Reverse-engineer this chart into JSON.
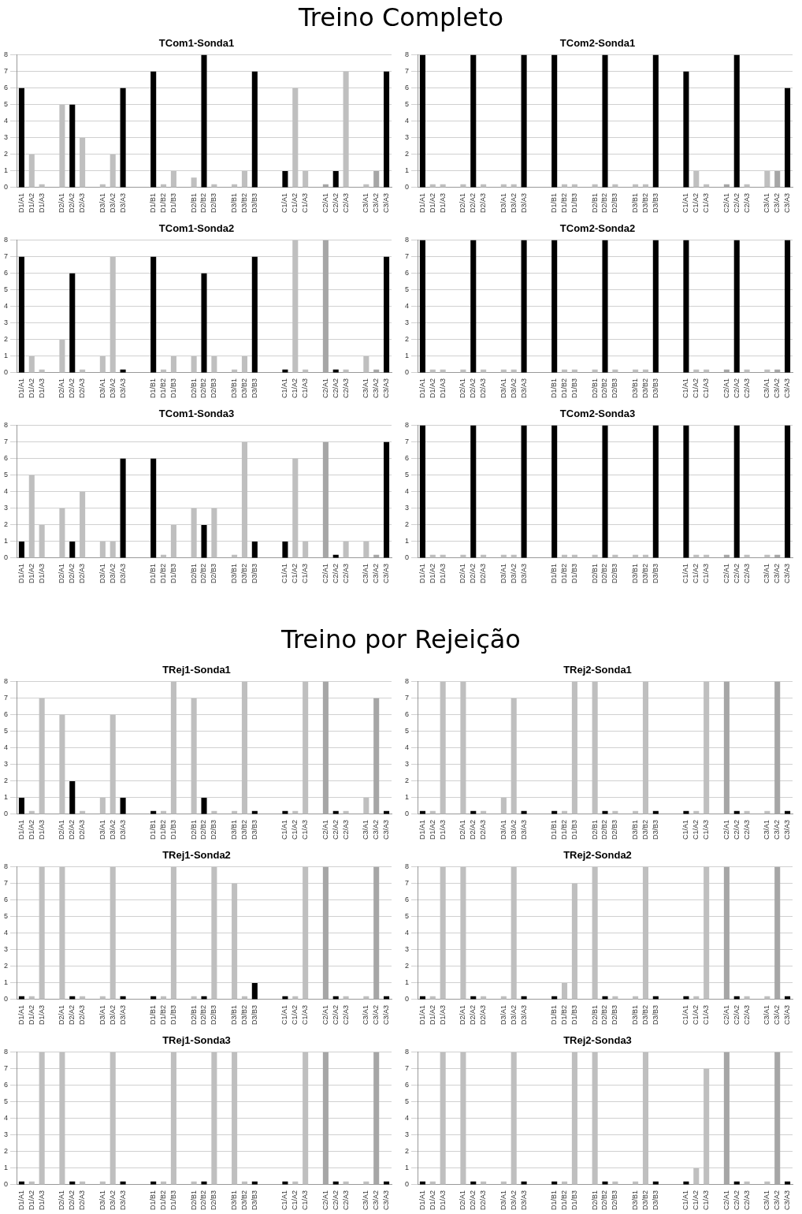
{
  "chart_data": [
    {
      "type": "bar",
      "title": "TCom1-Sonda1",
      "annotations": [
        "Treino Completo"
      ],
      "categories": [
        "D1/A1",
        "D1/A2",
        "D1/A3",
        null,
        "D2/A1",
        "D2/A2",
        "D2/A3",
        null,
        "D3/A1",
        "D3/A2",
        "D3/A3",
        null,
        null,
        "D1/B1",
        "D1/B2",
        "D1/B3",
        null,
        "D2/B1",
        "D2/B2",
        "D2/B3",
        null,
        "D3/B1",
        "D3/B2",
        "D3/B3",
        null,
        null,
        "C1/A1",
        "C1/A2",
        "C1/A3",
        null,
        "C2/A1",
        "C2/A2",
        "C2/A3",
        null,
        "C3/A1",
        "C3/A2",
        "C3/A3"
      ],
      "values": [
        6,
        2,
        0.2,
        null,
        5,
        5,
        3,
        null,
        0.2,
        2,
        6,
        null,
        null,
        7,
        0.2,
        1,
        null,
        0.6,
        8,
        0.2,
        null,
        0.2,
        1,
        7,
        null,
        null,
        1,
        6,
        1,
        null,
        0.2,
        1,
        7,
        null,
        0.2,
        1,
        7
      ],
      "colors": [
        "#000000",
        "#bfbfbf",
        "#bfbfbf",
        null,
        "#bfbfbf",
        "#000000",
        "#bfbfbf",
        null,
        "#bfbfbf",
        "#bfbfbf",
        "#000000",
        null,
        null,
        "#000000",
        "#bfbfbf",
        "#bfbfbf",
        null,
        "#bfbfbf",
        "#000000",
        "#bfbfbf",
        null,
        "#bfbfbf",
        "#bfbfbf",
        "#000000",
        null,
        null,
        "#000000",
        "#bfbfbf",
        "#bfbfbf",
        null,
        "#a6a6a6",
        "#000000",
        "#bfbfbf",
        null,
        "#bfbfbf",
        "#a6a6a6",
        "#000000"
      ],
      "ylim": [
        0,
        8
      ],
      "yticks": [
        0,
        1,
        2,
        3,
        4,
        5,
        6,
        7,
        8
      ],
      "grid": "y"
    },
    {
      "type": "bar",
      "title": "TCom2-Sonda1",
      "categories": [
        "D1/A1",
        "D1/A2",
        "D1/A3",
        null,
        "D2/A1",
        "D2/A2",
        "D2/A3",
        null,
        "D3/A1",
        "D3/A2",
        "D3/A3",
        null,
        null,
        "D1/B1",
        "D1/B2",
        "D1/B3",
        null,
        "D2/B1",
        "D2/B2",
        "D2/B3",
        null,
        "D3/B1",
        "D3/B2",
        "D3/B3",
        null,
        null,
        "C1/A1",
        "C1/A2",
        "C1/A3",
        null,
        "C2/A1",
        "C2/A2",
        "C2/A3",
        null,
        "C3/A1",
        "C3/A2",
        "C3/A3"
      ],
      "values": [
        8,
        0.2,
        0.2,
        null,
        0.2,
        8,
        0.2,
        null,
        0.2,
        0.2,
        8,
        null,
        null,
        8,
        0.2,
        0.2,
        null,
        0.2,
        8,
        0.2,
        null,
        0.2,
        0.2,
        8,
        null,
        null,
        7,
        1,
        0.2,
        null,
        0.2,
        8,
        0.2,
        null,
        1,
        1,
        6
      ],
      "colors": [
        "#000000",
        "#bfbfbf",
        "#bfbfbf",
        null,
        "#bfbfbf",
        "#000000",
        "#bfbfbf",
        null,
        "#bfbfbf",
        "#bfbfbf",
        "#000000",
        null,
        null,
        "#000000",
        "#bfbfbf",
        "#bfbfbf",
        null,
        "#bfbfbf",
        "#000000",
        "#bfbfbf",
        null,
        "#bfbfbf",
        "#bfbfbf",
        "#000000",
        null,
        null,
        "#000000",
        "#bfbfbf",
        "#bfbfbf",
        null,
        "#a6a6a6",
        "#000000",
        "#bfbfbf",
        null,
        "#bfbfbf",
        "#a6a6a6",
        "#000000"
      ],
      "ylim": [
        0,
        8
      ],
      "yticks": [
        0,
        1,
        2,
        3,
        4,
        5,
        6,
        7,
        8
      ],
      "grid": "y"
    },
    {
      "type": "bar",
      "title": "TCom1-Sonda2",
      "categories": [
        "D1/A1",
        "D1/A2",
        "D1/A3",
        null,
        "D2/A1",
        "D2/A2",
        "D2/A3",
        null,
        "D3/A1",
        "D3/A2",
        "D3/A3",
        null,
        null,
        "D1/B1",
        "D1/B2",
        "D1/B3",
        null,
        "D2/B1",
        "D2/B2",
        "D2/B3",
        null,
        "D3/B1",
        "D3/B2",
        "D3/B3",
        null,
        null,
        "C1/A1",
        "C1/A2",
        "C1/A3",
        null,
        "C2/A1",
        "C2/A2",
        "C2/A3",
        null,
        "C3/A1",
        "C3/A2",
        "C3/A3"
      ],
      "values": [
        7,
        1,
        0.2,
        null,
        2,
        6,
        0.2,
        null,
        1,
        7,
        0.2,
        null,
        null,
        7,
        0.2,
        1,
        null,
        1,
        6,
        1,
        null,
        0.2,
        1,
        7,
        null,
        null,
        0.2,
        8,
        0.2,
        null,
        8,
        0.2,
        0.2,
        null,
        1,
        0.2,
        7
      ],
      "colors": [
        "#000000",
        "#bfbfbf",
        "#bfbfbf",
        null,
        "#bfbfbf",
        "#000000",
        "#bfbfbf",
        null,
        "#bfbfbf",
        "#bfbfbf",
        "#000000",
        null,
        null,
        "#000000",
        "#bfbfbf",
        "#bfbfbf",
        null,
        "#bfbfbf",
        "#000000",
        "#bfbfbf",
        null,
        "#bfbfbf",
        "#bfbfbf",
        "#000000",
        null,
        null,
        "#000000",
        "#bfbfbf",
        "#bfbfbf",
        null,
        "#a6a6a6",
        "#000000",
        "#bfbfbf",
        null,
        "#bfbfbf",
        "#a6a6a6",
        "#000000"
      ],
      "ylim": [
        0,
        8
      ],
      "yticks": [
        0,
        1,
        2,
        3,
        4,
        5,
        6,
        7,
        8
      ],
      "grid": "y"
    },
    {
      "type": "bar",
      "title": "TCom2-Sonda2",
      "categories": [
        "D1/A1",
        "D1/A2",
        "D1/A3",
        null,
        "D2/A1",
        "D2/A2",
        "D2/A3",
        null,
        "D3/A1",
        "D3/A2",
        "D3/A3",
        null,
        null,
        "D1/B1",
        "D1/B2",
        "D1/B3",
        null,
        "D2/B1",
        "D2/B2",
        "D2/B3",
        null,
        "D3/B1",
        "D3/B2",
        "D3/B3",
        null,
        null,
        "C1/A1",
        "C1/A2",
        "C1/A3",
        null,
        "C2/A1",
        "C2/A2",
        "C2/A3",
        null,
        "C3/A1",
        "C3/A2",
        "C3/A3"
      ],
      "values": [
        8,
        0.2,
        0.2,
        null,
        0.2,
        8,
        0.2,
        null,
        0.2,
        0.2,
        8,
        null,
        null,
        8,
        0.2,
        0.2,
        null,
        0.2,
        8,
        0.2,
        null,
        0.2,
        0.2,
        8,
        null,
        null,
        8,
        0.2,
        0.2,
        null,
        0.2,
        8,
        0.2,
        null,
        0.2,
        0.2,
        8
      ],
      "colors": [
        "#000000",
        "#bfbfbf",
        "#bfbfbf",
        null,
        "#bfbfbf",
        "#000000",
        "#bfbfbf",
        null,
        "#bfbfbf",
        "#bfbfbf",
        "#000000",
        null,
        null,
        "#000000",
        "#bfbfbf",
        "#bfbfbf",
        null,
        "#bfbfbf",
        "#000000",
        "#bfbfbf",
        null,
        "#bfbfbf",
        "#bfbfbf",
        "#000000",
        null,
        null,
        "#000000",
        "#bfbfbf",
        "#bfbfbf",
        null,
        "#a6a6a6",
        "#000000",
        "#bfbfbf",
        null,
        "#bfbfbf",
        "#a6a6a6",
        "#000000"
      ],
      "ylim": [
        0,
        8
      ],
      "yticks": [
        0,
        1,
        2,
        3,
        4,
        5,
        6,
        7,
        8
      ],
      "grid": "y"
    },
    {
      "type": "bar",
      "title": "TCom1-Sonda3",
      "categories": [
        "D1/A1",
        "D1/A2",
        "D1/A3",
        null,
        "D2/A1",
        "D2/A2",
        "D2/A3",
        null,
        "D3/A1",
        "D3/A2",
        "D3/A3",
        null,
        null,
        "D1/B1",
        "D1/B2",
        "D1/B3",
        null,
        "D2/B1",
        "D2/B2",
        "D2/B3",
        null,
        "D3/B1",
        "D3/B2",
        "D3/B3",
        null,
        null,
        "C1/A1",
        "C1/A2",
        "C1/A3",
        null,
        "C2/A1",
        "C2/A2",
        "C2/A3",
        null,
        "C3/A1",
        "C3/A2",
        "C3/A3"
      ],
      "values": [
        1,
        5,
        2,
        null,
        3,
        1,
        4,
        null,
        1,
        1,
        6,
        null,
        null,
        6,
        0.2,
        2,
        null,
        3,
        2,
        3,
        null,
        0.2,
        7,
        1,
        null,
        null,
        1,
        6,
        1,
        null,
        7,
        0.2,
        1,
        null,
        1,
        0.2,
        7
      ],
      "colors": [
        "#000000",
        "#bfbfbf",
        "#bfbfbf",
        null,
        "#bfbfbf",
        "#000000",
        "#bfbfbf",
        null,
        "#bfbfbf",
        "#bfbfbf",
        "#000000",
        null,
        null,
        "#000000",
        "#bfbfbf",
        "#bfbfbf",
        null,
        "#bfbfbf",
        "#000000",
        "#bfbfbf",
        null,
        "#bfbfbf",
        "#bfbfbf",
        "#000000",
        null,
        null,
        "#000000",
        "#bfbfbf",
        "#bfbfbf",
        null,
        "#a6a6a6",
        "#000000",
        "#bfbfbf",
        null,
        "#bfbfbf",
        "#a6a6a6",
        "#000000"
      ],
      "ylim": [
        0,
        8
      ],
      "yticks": [
        0,
        1,
        2,
        3,
        4,
        5,
        6,
        7,
        8
      ],
      "grid": "y"
    },
    {
      "type": "bar",
      "title": "TCom2-Sonda3",
      "categories": [
        "D1/A1",
        "D1/A2",
        "D1/A3",
        null,
        "D2/A1",
        "D2/A2",
        "D2/A3",
        null,
        "D3/A1",
        "D3/A2",
        "D3/A3",
        null,
        null,
        "D1/B1",
        "D1/B2",
        "D1/B3",
        null,
        "D2/B1",
        "D2/B2",
        "D2/B3",
        null,
        "D3/B1",
        "D3/B2",
        "D3/B3",
        null,
        null,
        "C1/A1",
        "C1/A2",
        "C1/A3",
        null,
        "C2/A1",
        "C2/A2",
        "C2/A3",
        null,
        "C3/A1",
        "C3/A2",
        "C3/A3"
      ],
      "values": [
        8,
        0.2,
        0.2,
        null,
        0.2,
        8,
        0.2,
        null,
        0.2,
        0.2,
        8,
        null,
        null,
        8,
        0.2,
        0.2,
        null,
        0.2,
        8,
        0.2,
        null,
        0.2,
        0.2,
        8,
        null,
        null,
        8,
        0.2,
        0.2,
        null,
        0.2,
        8,
        0.2,
        null,
        0.2,
        0.2,
        8
      ],
      "colors": [
        "#000000",
        "#bfbfbf",
        "#bfbfbf",
        null,
        "#bfbfbf",
        "#000000",
        "#bfbfbf",
        null,
        "#bfbfbf",
        "#bfbfbf",
        "#000000",
        null,
        null,
        "#000000",
        "#bfbfbf",
        "#bfbfbf",
        null,
        "#bfbfbf",
        "#000000",
        "#bfbfbf",
        null,
        "#bfbfbf",
        "#bfbfbf",
        "#000000",
        null,
        null,
        "#000000",
        "#bfbfbf",
        "#bfbfbf",
        null,
        "#a6a6a6",
        "#000000",
        "#bfbfbf",
        null,
        "#bfbfbf",
        "#a6a6a6",
        "#000000"
      ],
      "ylim": [
        0,
        8
      ],
      "yticks": [
        0,
        1,
        2,
        3,
        4,
        5,
        6,
        7,
        8
      ],
      "grid": "y"
    },
    {
      "type": "bar",
      "title": "TRej1-Sonda1",
      "annotations": [
        "Treino por Rejeição"
      ],
      "categories": [
        "D1/A1",
        "D1/A2",
        "D1/A3",
        null,
        "D2/A1",
        "D2/A2",
        "D2/A3",
        null,
        "D3/A1",
        "D3/A2",
        "D3/A3",
        null,
        null,
        "D1/B1",
        "D1/B2",
        "D1/B3",
        null,
        "D2/B1",
        "D2/B2",
        "D2/B3",
        null,
        "D3/B1",
        "D3/B2",
        "D3/B3",
        null,
        null,
        "C1/A1",
        "C1/A2",
        "C1/A3",
        null,
        "C2/A1",
        "C2/A2",
        "C2/A3",
        null,
        "C3/A1",
        "C3/A2",
        "C3/A3"
      ],
      "values": [
        1,
        0.2,
        7,
        null,
        6,
        2,
        0.2,
        null,
        1,
        6,
        1,
        null,
        null,
        0.2,
        0.2,
        8,
        null,
        7,
        1,
        0.2,
        null,
        0.2,
        8,
        0.2,
        null,
        null,
        0.2,
        0.2,
        8,
        null,
        8,
        0.2,
        0.2,
        null,
        1,
        7,
        0.2
      ],
      "colors": [
        "#000000",
        "#bfbfbf",
        "#bfbfbf",
        null,
        "#bfbfbf",
        "#000000",
        "#bfbfbf",
        null,
        "#bfbfbf",
        "#bfbfbf",
        "#000000",
        null,
        null,
        "#000000",
        "#bfbfbf",
        "#bfbfbf",
        null,
        "#bfbfbf",
        "#000000",
        "#bfbfbf",
        null,
        "#bfbfbf",
        "#bfbfbf",
        "#000000",
        null,
        null,
        "#000000",
        "#bfbfbf",
        "#bfbfbf",
        null,
        "#a6a6a6",
        "#000000",
        "#bfbfbf",
        null,
        "#bfbfbf",
        "#a6a6a6",
        "#000000"
      ],
      "ylim": [
        0,
        8
      ],
      "yticks": [
        0,
        1,
        2,
        3,
        4,
        5,
        6,
        7,
        8
      ],
      "grid": "y"
    },
    {
      "type": "bar",
      "title": "TRej2-Sonda1",
      "categories": [
        "D1/A1",
        "D1/A2",
        "D1/A3",
        null,
        "D2/A1",
        "D2/A2",
        "D2/A3",
        null,
        "D3/A1",
        "D3/A2",
        "D3/A3",
        null,
        null,
        "D1/B1",
        "D1/B2",
        "D1/B3",
        null,
        "D2/B1",
        "D2/B2",
        "D2/B3",
        null,
        "D3/B1",
        "D3/B2",
        "D3/B3",
        null,
        null,
        "C1/A1",
        "C1/A2",
        "C1/A3",
        null,
        "C2/A1",
        "C2/A2",
        "C2/A3",
        null,
        "C3/A1",
        "C3/A2",
        "C3/A3"
      ],
      "values": [
        0.2,
        0.2,
        8,
        null,
        8,
        0.2,
        0.2,
        null,
        1,
        7,
        0.2,
        null,
        null,
        0.2,
        0.2,
        8,
        null,
        8,
        0.2,
        0.2,
        null,
        0.2,
        8,
        0.2,
        null,
        null,
        0.2,
        0.2,
        8,
        null,
        8,
        0.2,
        0.2,
        null,
        0.2,
        8,
        0.2
      ],
      "colors": [
        "#000000",
        "#bfbfbf",
        "#bfbfbf",
        null,
        "#bfbfbf",
        "#000000",
        "#bfbfbf",
        null,
        "#bfbfbf",
        "#bfbfbf",
        "#000000",
        null,
        null,
        "#000000",
        "#bfbfbf",
        "#bfbfbf",
        null,
        "#bfbfbf",
        "#000000",
        "#bfbfbf",
        null,
        "#bfbfbf",
        "#bfbfbf",
        "#000000",
        null,
        null,
        "#000000",
        "#bfbfbf",
        "#bfbfbf",
        null,
        "#a6a6a6",
        "#000000",
        "#bfbfbf",
        null,
        "#bfbfbf",
        "#a6a6a6",
        "#000000"
      ],
      "ylim": [
        0,
        8
      ],
      "yticks": [
        0,
        1,
        2,
        3,
        4,
        5,
        6,
        7,
        8
      ],
      "grid": "y"
    },
    {
      "type": "bar",
      "title": "TRej1-Sonda2",
      "categories": [
        "D1/A1",
        "D1/A2",
        "D1/A3",
        null,
        "D2/A1",
        "D2/A2",
        "D2/A3",
        null,
        "D3/A1",
        "D3/A2",
        "D3/A3",
        null,
        null,
        "D1/B1",
        "D1/B2",
        "D1/B3",
        null,
        "D2/B1",
        "D2/B2",
        "D2/B3",
        null,
        "D3/B1",
        "D3/B2",
        "D3/B3",
        null,
        null,
        "C1/A1",
        "C1/A2",
        "C1/A3",
        null,
        "C2/A1",
        "C2/A2",
        "C2/A3",
        null,
        "C3/A1",
        "C3/A2",
        "C3/A3"
      ],
      "values": [
        0.2,
        0.2,
        8,
        null,
        8,
        0.2,
        0.2,
        null,
        0.2,
        8,
        0.2,
        null,
        null,
        0.2,
        0.2,
        8,
        null,
        0.2,
        0.2,
        8,
        null,
        7,
        0.2,
        1,
        null,
        null,
        0.2,
        0.2,
        8,
        null,
        8,
        0.2,
        0.2,
        null,
        0.2,
        8,
        0.2
      ],
      "colors": [
        "#000000",
        "#bfbfbf",
        "#bfbfbf",
        null,
        "#bfbfbf",
        "#000000",
        "#bfbfbf",
        null,
        "#bfbfbf",
        "#bfbfbf",
        "#000000",
        null,
        null,
        "#000000",
        "#bfbfbf",
        "#bfbfbf",
        null,
        "#bfbfbf",
        "#000000",
        "#bfbfbf",
        null,
        "#bfbfbf",
        "#bfbfbf",
        "#000000",
        null,
        null,
        "#000000",
        "#bfbfbf",
        "#bfbfbf",
        null,
        "#a6a6a6",
        "#000000",
        "#bfbfbf",
        null,
        "#bfbfbf",
        "#a6a6a6",
        "#000000"
      ],
      "ylim": [
        0,
        8
      ],
      "yticks": [
        0,
        1,
        2,
        3,
        4,
        5,
        6,
        7,
        8
      ],
      "grid": "y"
    },
    {
      "type": "bar",
      "title": "TRej2-Sonda2",
      "categories": [
        "D1/A1",
        "D1/A2",
        "D1/A3",
        null,
        "D2/A1",
        "D2/A2",
        "D2/A3",
        null,
        "D3/A1",
        "D3/A2",
        "D3/A3",
        null,
        null,
        "D1/B1",
        "D1/B2",
        "D1/B3",
        null,
        "D2/B1",
        "D2/B2",
        "D2/B3",
        null,
        "D3/B1",
        "D3/B2",
        "D3/B3",
        null,
        null,
        "C1/A1",
        "C1/A2",
        "C1/A3",
        null,
        "C2/A1",
        "C2/A2",
        "C2/A3",
        null,
        "C3/A1",
        "C3/A2",
        "C3/A3"
      ],
      "values": [
        0.2,
        0.2,
        8,
        null,
        8,
        0.2,
        0.2,
        null,
        0.2,
        8,
        0.2,
        null,
        null,
        0.2,
        1,
        7,
        null,
        8,
        0.2,
        0.2,
        null,
        0.2,
        8,
        0.2,
        null,
        null,
        0.2,
        0.2,
        8,
        null,
        8,
        0.2,
        0.2,
        null,
        0.2,
        8,
        0.2
      ],
      "colors": [
        "#000000",
        "#bfbfbf",
        "#bfbfbf",
        null,
        "#bfbfbf",
        "#000000",
        "#bfbfbf",
        null,
        "#bfbfbf",
        "#bfbfbf",
        "#000000",
        null,
        null,
        "#000000",
        "#bfbfbf",
        "#bfbfbf",
        null,
        "#bfbfbf",
        "#000000",
        "#bfbfbf",
        null,
        "#bfbfbf",
        "#bfbfbf",
        "#000000",
        null,
        null,
        "#000000",
        "#bfbfbf",
        "#bfbfbf",
        null,
        "#a6a6a6",
        "#000000",
        "#bfbfbf",
        null,
        "#bfbfbf",
        "#a6a6a6",
        "#000000"
      ],
      "ylim": [
        0,
        8
      ],
      "yticks": [
        0,
        1,
        2,
        3,
        4,
        5,
        6,
        7,
        8
      ],
      "grid": "y"
    },
    {
      "type": "bar",
      "title": "TRej1-Sonda3",
      "categories": [
        "D1/A1",
        "D1/A2",
        "D1/A3",
        null,
        "D2/A1",
        "D2/A2",
        "D2/A3",
        null,
        "D3/A1",
        "D3/A2",
        "D3/A3",
        null,
        null,
        "D1/B1",
        "D1/B2",
        "D1/B3",
        null,
        "D2/B1",
        "D2/B2",
        "D2/B3",
        null,
        "D3/B1",
        "D3/B2",
        "D3/B3",
        null,
        null,
        "C1/A1",
        "C1/A2",
        "C1/A3",
        null,
        "C2/A1",
        "C2/A2",
        "C2/A3",
        null,
        "C3/A1",
        "C3/A2",
        "C3/A3"
      ],
      "values": [
        0.2,
        0.2,
        8,
        null,
        8,
        0.2,
        0.2,
        null,
        0.2,
        8,
        0.2,
        null,
        null,
        0.2,
        0.2,
        8,
        null,
        0.2,
        0.2,
        8,
        null,
        8,
        0.2,
        0.2,
        null,
        null,
        0.2,
        0.2,
        8,
        null,
        8,
        0.2,
        0.2,
        null,
        0.2,
        8,
        0.2
      ],
      "colors": [
        "#000000",
        "#bfbfbf",
        "#bfbfbf",
        null,
        "#bfbfbf",
        "#000000",
        "#bfbfbf",
        null,
        "#bfbfbf",
        "#bfbfbf",
        "#000000",
        null,
        null,
        "#000000",
        "#bfbfbf",
        "#bfbfbf",
        null,
        "#bfbfbf",
        "#000000",
        "#bfbfbf",
        null,
        "#bfbfbf",
        "#bfbfbf",
        "#000000",
        null,
        null,
        "#000000",
        "#bfbfbf",
        "#bfbfbf",
        null,
        "#a6a6a6",
        "#000000",
        "#bfbfbf",
        null,
        "#bfbfbf",
        "#a6a6a6",
        "#000000"
      ],
      "ylim": [
        0,
        8
      ],
      "yticks": [
        0,
        1,
        2,
        3,
        4,
        5,
        6,
        7,
        8
      ],
      "grid": "y"
    },
    {
      "type": "bar",
      "title": "TRej2-Sonda3",
      "categories": [
        "D1/A1",
        "D1/A2",
        "D1/A3",
        null,
        "D2/A1",
        "D2/A2",
        "D2/A3",
        null,
        "D3/A1",
        "D3/A2",
        "D3/A3",
        null,
        null,
        "D1/B1",
        "D1/B2",
        "D1/B3",
        null,
        "D2/B1",
        "D2/B2",
        "D2/B3",
        null,
        "D3/B1",
        "D3/B2",
        "D3/B3",
        null,
        null,
        "C1/A1",
        "C1/A2",
        "C1/A3",
        null,
        "C2/A1",
        "C2/A2",
        "C2/A3",
        null,
        "C3/A1",
        "C3/A2",
        "C3/A3"
      ],
      "values": [
        0.2,
        0.2,
        8,
        null,
        8,
        0.2,
        0.2,
        null,
        0.2,
        8,
        0.2,
        null,
        null,
        0.2,
        0.2,
        8,
        null,
        8,
        0.2,
        0.2,
        null,
        0.2,
        8,
        0.2,
        null,
        null,
        0.2,
        1,
        7,
        null,
        8,
        0.2,
        0.2,
        null,
        0.2,
        8,
        0.2
      ],
      "colors": [
        "#000000",
        "#bfbfbf",
        "#bfbfbf",
        null,
        "#bfbfbf",
        "#000000",
        "#bfbfbf",
        null,
        "#bfbfbf",
        "#bfbfbf",
        "#000000",
        null,
        null,
        "#000000",
        "#bfbfbf",
        "#bfbfbf",
        null,
        "#bfbfbf",
        "#000000",
        "#bfbfbf",
        null,
        "#bfbfbf",
        "#bfbfbf",
        "#000000",
        null,
        null,
        "#000000",
        "#bfbfbf",
        "#bfbfbf",
        null,
        "#a6a6a6",
        "#000000",
        "#bfbfbf",
        null,
        "#bfbfbf",
        "#a6a6a6",
        "#000000"
      ],
      "ylim": [
        0,
        8
      ],
      "yticks": [
        0,
        1,
        2,
        3,
        4,
        5,
        6,
        7,
        8
      ],
      "grid": "y"
    }
  ]
}
